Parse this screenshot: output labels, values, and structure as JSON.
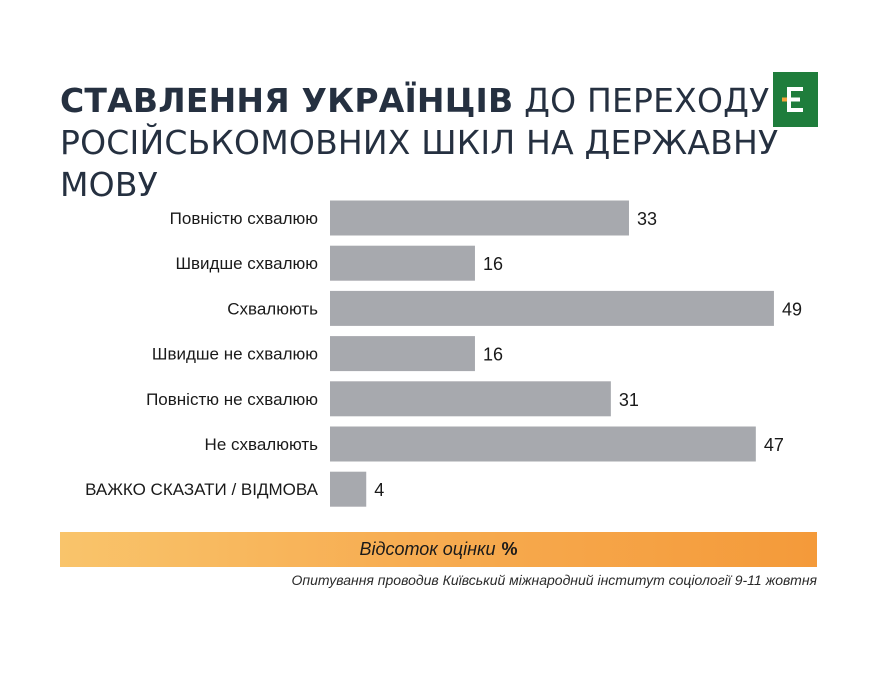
{
  "title": {
    "bold": "СТАВЛЕННЯ УКРАЇНЦІВ",
    "rest_line1": " ДО ПЕРЕХОДУ",
    "line2": "РОСІЙСЬКОМОВНИХ ШКІЛ НА ДЕРЖАВНУ МОВУ"
  },
  "logo": {
    "letter": "E",
    "icon": "publisher-logo-icon",
    "color": "#1f7d3c",
    "accent": "#f5a33a"
  },
  "axis": {
    "label": "Відсоток оцінки",
    "unit": "%"
  },
  "footnote": "Опитування проводив Київський міжнародний інститут соціології 9-11 жовтня",
  "chart_data": {
    "type": "bar",
    "orientation": "horizontal",
    "categories": [
      "Повністю схвалюю",
      "Швидше схвалюю",
      "Схвалюють",
      "Швидше не схвалюю",
      "Повністю не схвалюю",
      "Не схвалюють",
      "ВАЖКО СКАЗАТИ / ВІДМОВА"
    ],
    "values": [
      33,
      16,
      49,
      16,
      31,
      47,
      4
    ],
    "xlabel": "Відсоток оцінки %",
    "xlim": [
      0,
      50
    ],
    "bar_color": "#a7a9ae",
    "grid": false,
    "legend": "none"
  }
}
